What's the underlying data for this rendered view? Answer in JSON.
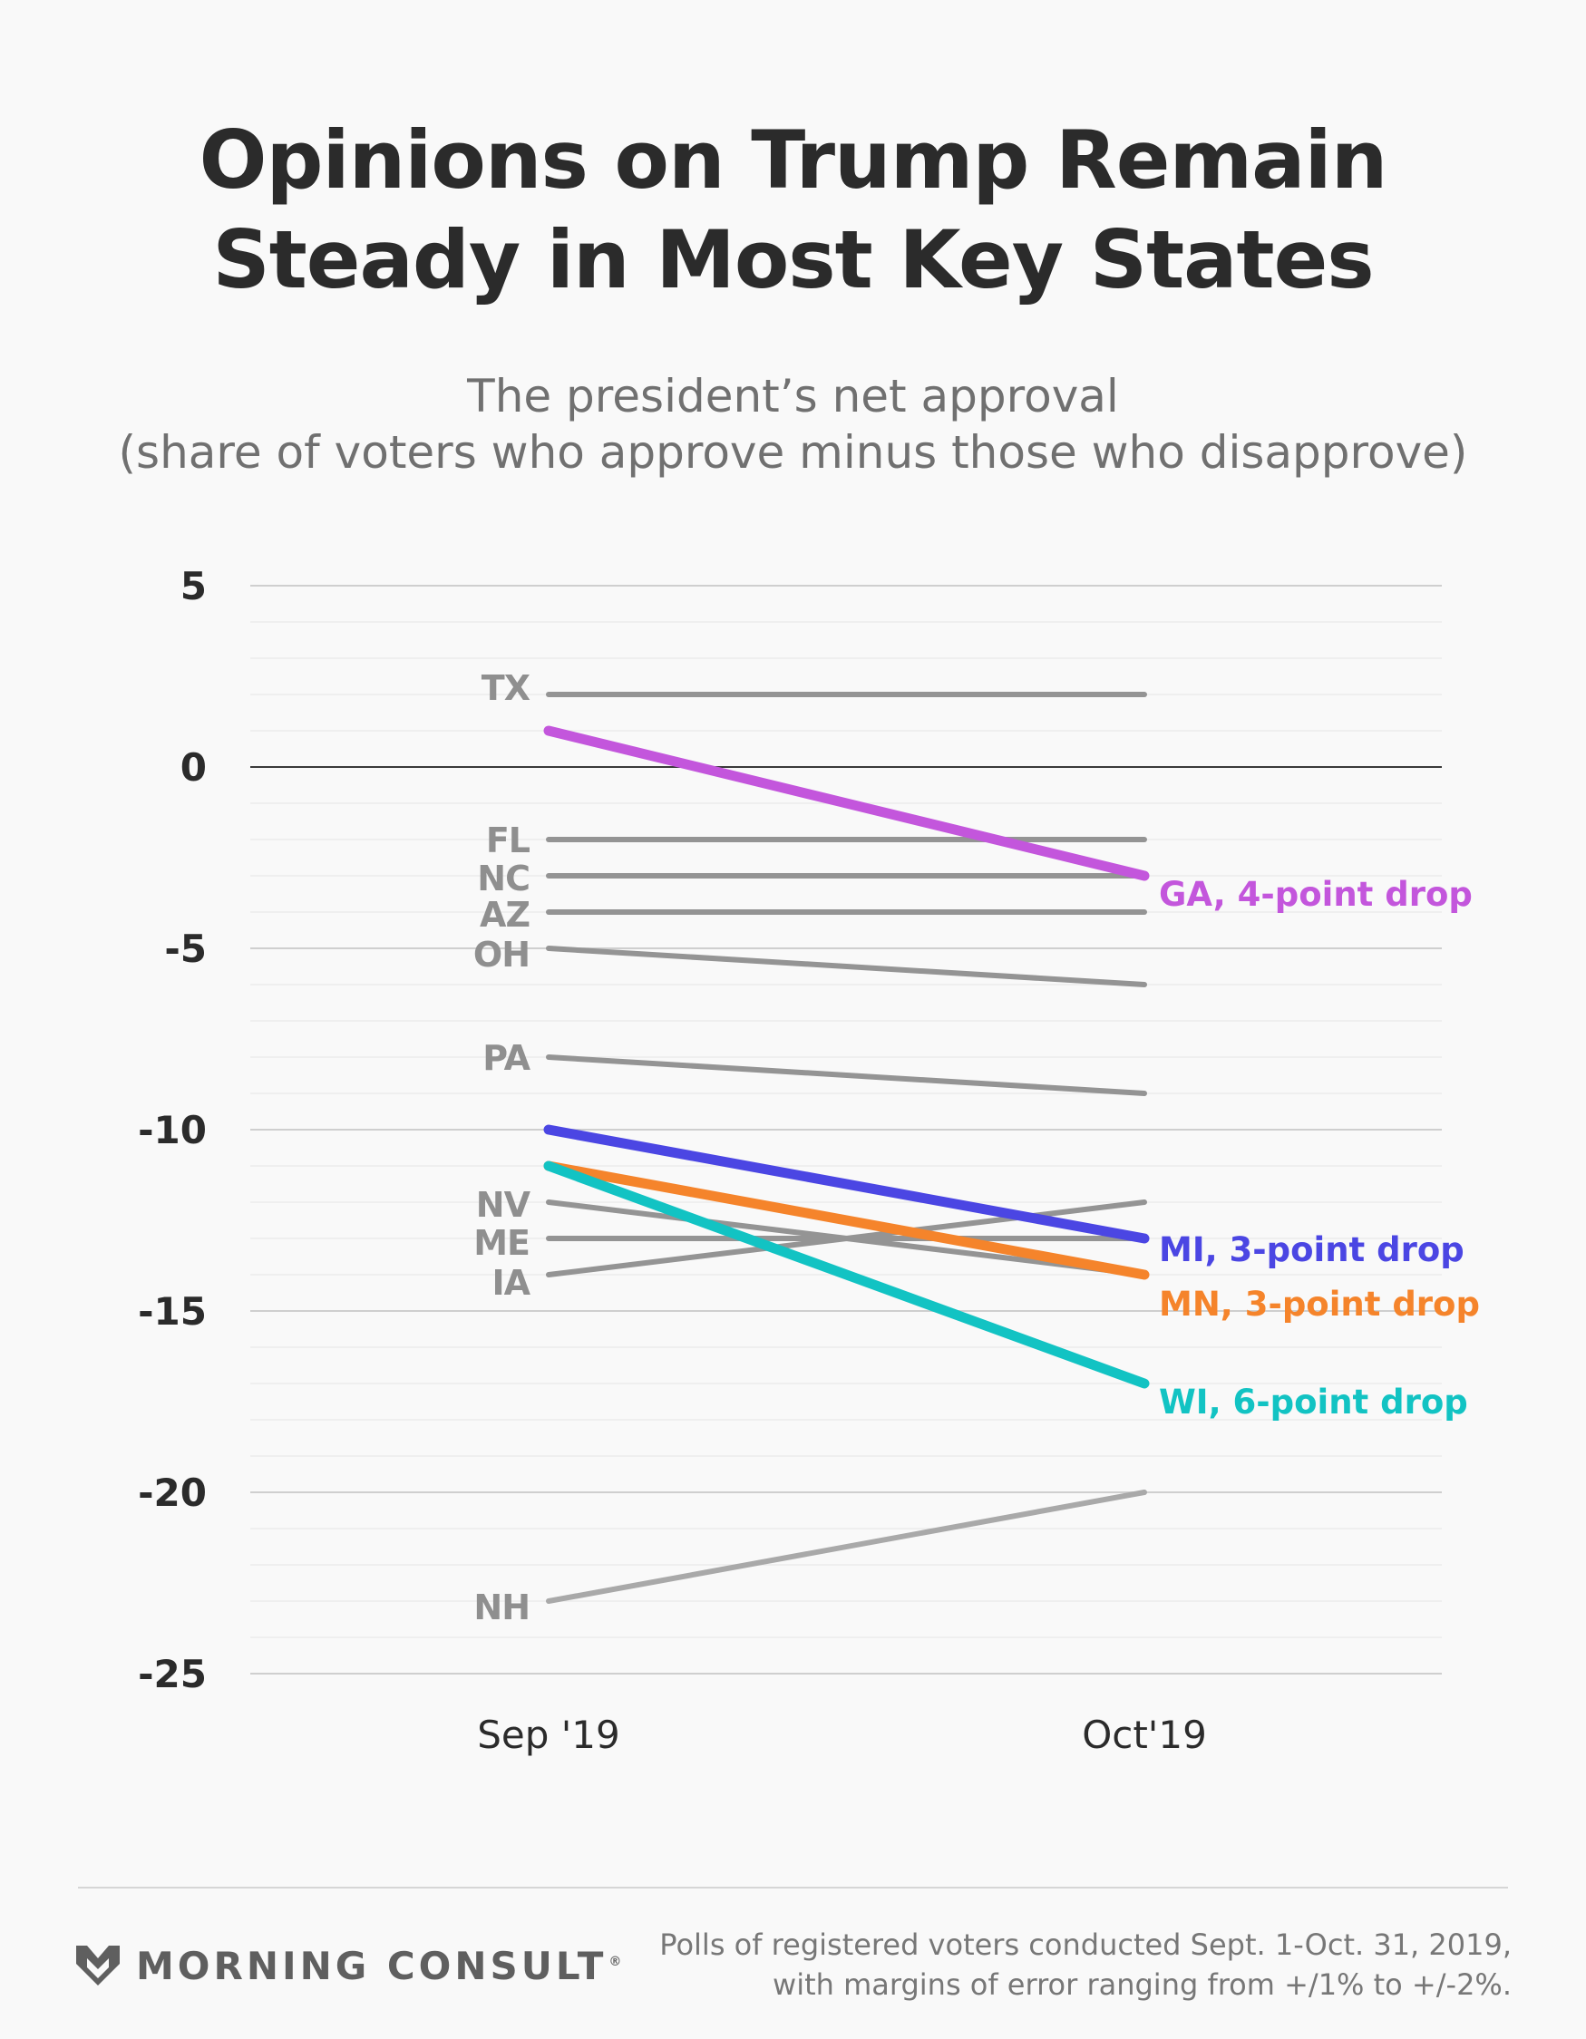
{
  "title": {
    "line1": "Opinions on Trump Remain",
    "line2": "Steady in Most Key States"
  },
  "subtitle": {
    "line1": "The president’s net approval",
    "line2": "(share of voters who approve minus those who disapprove)"
  },
  "footer": {
    "brand": "MORNING CONSULT",
    "registered": "®",
    "note_line1": "Polls of registered voters conducted Sept. 1-Oct. 31, 2019,",
    "note_line2": "with margins of error ranging from +/1% to +/-2%."
  },
  "chart_data": {
    "type": "line",
    "categories": [
      "Sep '19",
      "Oct'19"
    ],
    "ylim": [
      -25,
      5
    ],
    "yticks": [
      5,
      0,
      -5,
      -10,
      -15,
      -20,
      -25
    ],
    "grid": true,
    "series": [
      {
        "name": "TX",
        "values": [
          2,
          2
        ],
        "color": "#949494",
        "highlight": false
      },
      {
        "name": "FL",
        "values": [
          -2,
          -2
        ],
        "color": "#949494",
        "highlight": false
      },
      {
        "name": "NC",
        "values": [
          -3,
          -3
        ],
        "color": "#949494",
        "highlight": false
      },
      {
        "name": "AZ",
        "values": [
          -4,
          -4
        ],
        "color": "#949494",
        "highlight": false
      },
      {
        "name": "OH",
        "values": [
          -5,
          -6
        ],
        "color": "#949494",
        "highlight": false
      },
      {
        "name": "PA",
        "values": [
          -8,
          -9
        ],
        "color": "#949494",
        "highlight": false
      },
      {
        "name": "NV",
        "values": [
          -12,
          -14
        ],
        "color": "#949494",
        "highlight": false
      },
      {
        "name": "ME",
        "values": [
          -13,
          -13
        ],
        "color": "#949494",
        "highlight": false
      },
      {
        "name": "IA",
        "values": [
          -14,
          -12
        ],
        "color": "#949494",
        "highlight": false
      },
      {
        "name": "NH",
        "values": [
          -23,
          -20
        ],
        "color": "#a9a9a9",
        "highlight": false
      },
      {
        "name": "GA",
        "values": [
          1,
          -3
        ],
        "color": "#c356dc",
        "highlight": true,
        "end_label": "GA, 4-point drop"
      },
      {
        "name": "MI",
        "values": [
          -10,
          -13
        ],
        "color": "#4b46e3",
        "highlight": true,
        "end_label": "MI, 3-point drop"
      },
      {
        "name": "MN",
        "values": [
          -11,
          -14
        ],
        "color": "#f5842b",
        "highlight": true,
        "end_label": "MN, 3-point drop"
      },
      {
        "name": "WI",
        "values": [
          -11,
          -17
        ],
        "color": "#12c3c3",
        "highlight": true,
        "end_label": "WI, 6-point drop"
      }
    ]
  }
}
